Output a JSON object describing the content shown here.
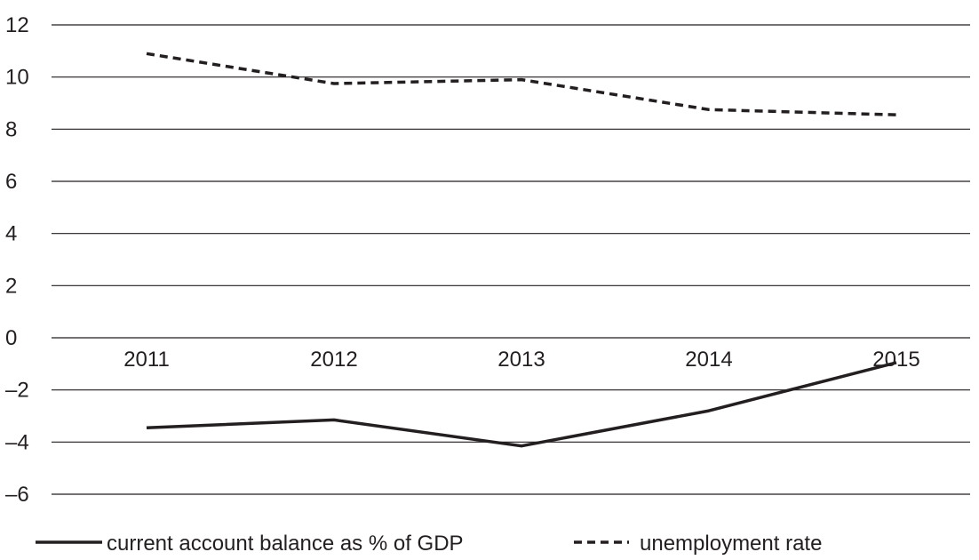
{
  "chart_data": {
    "type": "line",
    "title": "",
    "xlabel": "",
    "ylabel": "",
    "categories": [
      "2011",
      "2012",
      "2013",
      "2014",
      "2015"
    ],
    "ylim": [
      -6,
      12
    ],
    "yticks": [
      12,
      10,
      8,
      6,
      4,
      2,
      0,
      -2,
      -4,
      -6
    ],
    "ytick_labels": [
      "12",
      "10",
      "8",
      "6",
      "4",
      "2",
      "0",
      "–2",
      "–4",
      "–6"
    ],
    "grid": true,
    "legend_position": "bottom",
    "series": [
      {
        "name": "current account balance as % of GDP",
        "values": [
          -3.45,
          -3.15,
          -4.15,
          -2.8,
          -0.95
        ],
        "style": "solid",
        "color": "#231f20"
      },
      {
        "name": "unemployment rate",
        "values": [
          10.9,
          9.75,
          9.9,
          8.75,
          8.55
        ],
        "style": "dashed",
        "color": "#231f20"
      }
    ]
  }
}
